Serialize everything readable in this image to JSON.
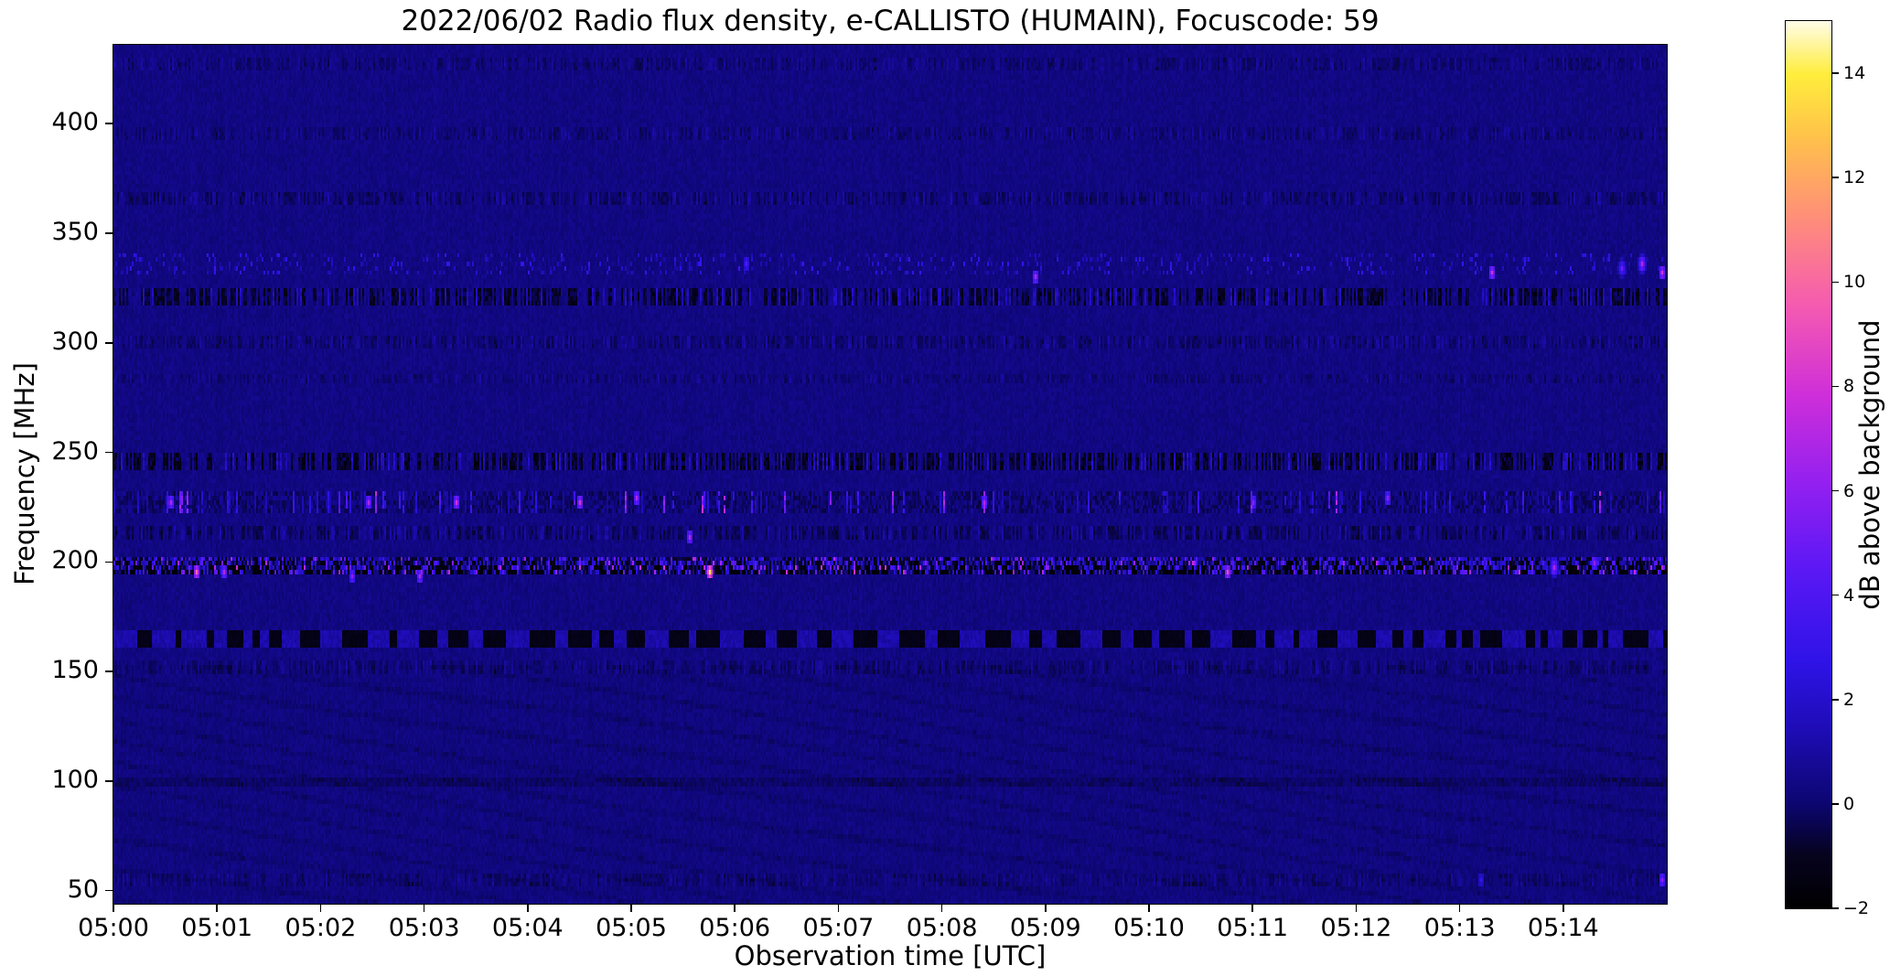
{
  "chart_data": {
    "type": "heatmap",
    "title": "2022/06/02  Radio flux density, e-CALLISTO (HUMAIN), Focuscode: 59",
    "xlabel": "Observation time [UTC]",
    "ylabel": "Frequency [MHz]",
    "colorbar_label": "dB above background",
    "x_start": "05:00",
    "duration_minutes": 15,
    "x_tick_labels": [
      "05:00",
      "05:01",
      "05:02",
      "05:03",
      "05:04",
      "05:05",
      "05:06",
      "05:07",
      "05:08",
      "05:09",
      "05:10",
      "05:11",
      "05:12",
      "05:13",
      "05:14"
    ],
    "x_tick_minutes": [
      0,
      1,
      2,
      3,
      4,
      5,
      6,
      7,
      8,
      9,
      10,
      11,
      12,
      13,
      14
    ],
    "y_tick_values": [
      50,
      100,
      150,
      200,
      250,
      300,
      350,
      400
    ],
    "freq_range": [
      44,
      436
    ],
    "value_range": [
      -2,
      15
    ],
    "colorbar_ticks": [
      {
        "v": -2,
        "label": "−2"
      },
      {
        "v": 0,
        "label": "0"
      },
      {
        "v": 2,
        "label": "2"
      },
      {
        "v": 4,
        "label": "4"
      },
      {
        "v": 6,
        "label": "6"
      },
      {
        "v": 8,
        "label": "8"
      },
      {
        "v": 10,
        "label": "10"
      },
      {
        "v": 12,
        "label": "12"
      },
      {
        "v": 14,
        "label": "14"
      }
    ],
    "background_db": 0.35,
    "colormap": "gnuplot2-like",
    "colormap_stops": [
      {
        "p": 0.0,
        "c": "#000000"
      },
      {
        "p": 0.06,
        "c": "#06031e"
      },
      {
        "p": 0.118,
        "c": "#0c0670"
      },
      {
        "p": 0.2,
        "c": "#1e0cb4"
      },
      {
        "p": 0.28,
        "c": "#2f13e8"
      },
      {
        "p": 0.38,
        "c": "#5a18f5"
      },
      {
        "p": 0.48,
        "c": "#9420f0"
      },
      {
        "p": 0.58,
        "c": "#cf2fd8"
      },
      {
        "p": 0.68,
        "c": "#f55bb0"
      },
      {
        "p": 0.78,
        "c": "#ff8f78"
      },
      {
        "p": 0.87,
        "c": "#ffc24a"
      },
      {
        "p": 0.94,
        "c": "#ffed3c"
      },
      {
        "p": 1.0,
        "c": "#fffce8"
      }
    ],
    "bands": [
      {
        "f": 428,
        "hw": 2.0,
        "kind": "speckle",
        "amp": 0.35
      },
      {
        "f": 395,
        "hw": 2.0,
        "kind": "speckle",
        "amp": 0.35
      },
      {
        "f": 366,
        "hw": 2.2,
        "kind": "speckle",
        "amp": 0.45
      },
      {
        "f": 336,
        "hw": 4.5,
        "kind": "bright_speckle",
        "amp": 1.0
      },
      {
        "f": 321,
        "hw": 3.0,
        "kind": "speckle",
        "amp": 1.0
      },
      {
        "f": 300,
        "hw": 1.5,
        "kind": "speckle",
        "amp": 0.4
      },
      {
        "f": 283,
        "hw": 1.2,
        "kind": "speckle",
        "amp": 0.3
      },
      {
        "f": 246,
        "hw": 2.6,
        "kind": "speckle",
        "amp": 1.1
      },
      {
        "f": 228,
        "hw": 4.0,
        "kind": "burst_ticks",
        "amp": 1.0
      },
      {
        "f": 213,
        "hw": 2.6,
        "kind": "speckle",
        "amp": 0.55
      },
      {
        "f": 198,
        "hw": 3.4,
        "kind": "active",
        "amp": 1.0
      },
      {
        "f": 165,
        "hw": 2.4,
        "kind": "dark_dashes",
        "amp": 1.0
      },
      {
        "f": 152,
        "hw": 1.4,
        "kind": "speckle",
        "amp": 0.35
      },
      {
        "f": 100,
        "hw": 1.3,
        "kind": "faint_dark",
        "amp": 0.55
      },
      {
        "f": 55,
        "hw": 1.4,
        "kind": "speckle",
        "amp": 0.3
      }
    ],
    "hotspots": [
      {
        "t": 0.55,
        "f": 228,
        "v": 7,
        "r": 1
      },
      {
        "t": 0.8,
        "f": 196,
        "v": 10,
        "r": 1
      },
      {
        "t": 1.05,
        "f": 196,
        "v": 7,
        "r": 1
      },
      {
        "t": 2.3,
        "f": 194,
        "v": 6,
        "r": 1
      },
      {
        "t": 2.45,
        "f": 228,
        "v": 7,
        "r": 1
      },
      {
        "t": 2.95,
        "f": 193,
        "v": 7,
        "r": 1
      },
      {
        "t": 3.3,
        "f": 228,
        "v": 8,
        "r": 1
      },
      {
        "t": 4.5,
        "f": 228,
        "v": 8,
        "r": 1
      },
      {
        "t": 5.05,
        "f": 229,
        "v": 7,
        "r": 1
      },
      {
        "t": 5.55,
        "f": 212,
        "v": 7,
        "r": 1
      },
      {
        "t": 5.75,
        "f": 196,
        "v": 14,
        "r": 1
      },
      {
        "t": 6.1,
        "f": 336,
        "v": 4,
        "r": 1
      },
      {
        "t": 8.4,
        "f": 227,
        "v": 7,
        "r": 1
      },
      {
        "t": 8.9,
        "f": 331,
        "v": 7,
        "r": 1
      },
      {
        "t": 10.75,
        "f": 196,
        "v": 9,
        "r": 1
      },
      {
        "t": 11.0,
        "f": 228,
        "v": 6,
        "r": 1
      },
      {
        "t": 12.3,
        "f": 230,
        "v": 6,
        "r": 1
      },
      {
        "t": 13.2,
        "f": 55,
        "v": 3,
        "r": 1
      },
      {
        "t": 13.3,
        "f": 333,
        "v": 8,
        "r": 1
      },
      {
        "t": 13.9,
        "f": 197,
        "v": 7,
        "r": 2
      },
      {
        "t": 14.3,
        "f": 200,
        "v": 6,
        "r": 1
      },
      {
        "t": 14.55,
        "f": 334,
        "v": 5,
        "r": 2
      },
      {
        "t": 14.75,
        "f": 337,
        "v": 7,
        "r": 2
      },
      {
        "t": 14.95,
        "f": 332,
        "v": 8,
        "r": 1
      },
      {
        "t": 14.95,
        "f": 55,
        "v": 6,
        "r": 1
      }
    ]
  }
}
